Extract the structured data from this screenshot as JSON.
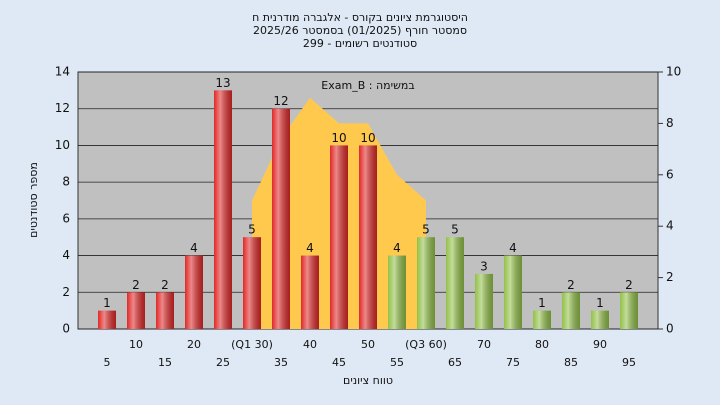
{
  "chart_data": {
    "type": "bar",
    "title": [
      "היסטוגרמת ציונים בקורס - אלגברה מודרנית ח",
      "2025/26 סמסטר חורף (01/2025) בסמסטר",
      "סטודנטים רשומים - 299"
    ],
    "annotation": "Exam_B : במשימה",
    "y_label": "מספר סטודנטים",
    "x_label": "טווח ציונים",
    "categories": [
      "5",
      "10",
      "15",
      "20",
      "25",
      "(Q1 30)",
      "35",
      "40",
      "45",
      "50",
      "55",
      "(Q3 60)",
      "65",
      "70",
      "75",
      "80",
      "85",
      "90",
      "95"
    ],
    "values": [
      1,
      2,
      2,
      4,
      13,
      5,
      12,
      4,
      10,
      10,
      4,
      5,
      5,
      3,
      4,
      1,
      2,
      1,
      2
    ],
    "bar_colors": [
      "#e02828",
      "#e02828",
      "#e02828",
      "#e02828",
      "#e02828",
      "#e02828",
      "#e02828",
      "#e02828",
      "#e02828",
      "#e02828",
      "#92c048",
      "#92c048",
      "#92c048",
      "#92c048",
      "#92c048",
      "#92c048",
      "#92c048",
      "#92c048",
      "#92c048"
    ],
    "area": {
      "axis": "y2",
      "color": "#ffc94d",
      "values": [
        null,
        null,
        null,
        null,
        null,
        5,
        7.4,
        9,
        8,
        8,
        6,
        5,
        null,
        null,
        null,
        null,
        null,
        null,
        null
      ]
    },
    "ylim": [
      0,
      14
    ],
    "yticks": [
      0,
      2,
      4,
      6,
      8,
      10,
      12,
      14
    ],
    "y2lim": [
      0,
      10
    ],
    "y2ticks": [
      0,
      2,
      4,
      6,
      8,
      10
    ],
    "grid": true,
    "plot_background": "#c0c0c0"
  }
}
